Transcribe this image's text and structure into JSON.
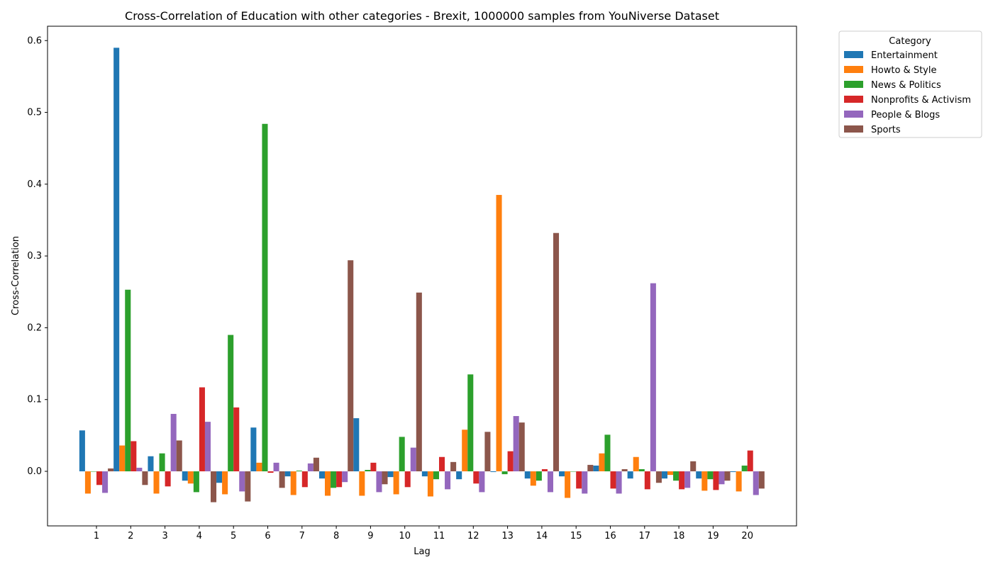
{
  "chart_data": {
    "type": "bar",
    "title": "Cross-Correlation of Education with other categories - Brexit, 1000000 samples from YouNiverse Dataset",
    "xlabel": "Lag",
    "ylabel": "Cross-Correlation",
    "ylim": [
      -0.076,
      0.62
    ],
    "yticks": [
      0.0,
      0.1,
      0.2,
      0.3,
      0.4,
      0.5,
      0.6
    ],
    "ytick_labels": [
      "0.0",
      "0.1",
      "0.2",
      "0.3",
      "0.4",
      "0.5",
      "0.6"
    ],
    "categories": [
      "1",
      "2",
      "3",
      "4",
      "5",
      "6",
      "7",
      "8",
      "9",
      "10",
      "11",
      "12",
      "13",
      "14",
      "15",
      "16",
      "17",
      "18",
      "19",
      "20"
    ],
    "legend": {
      "title": "Category",
      "placement": "outside-top-right"
    },
    "grid": false,
    "series": [
      {
        "name": "Entertainment",
        "color": "#1f77b4",
        "values": [
          0.057,
          0.59,
          0.021,
          -0.013,
          -0.016,
          0.061,
          -0.007,
          -0.01,
          0.074,
          -0.008,
          -0.007,
          -0.011,
          -0.001,
          -0.01,
          -0.007,
          0.008,
          -0.01,
          -0.01,
          -0.01,
          -0.001
        ]
      },
      {
        "name": "Howto & Style",
        "color": "#ff7f0e",
        "values": [
          -0.031,
          0.036,
          -0.031,
          -0.017,
          -0.032,
          0.012,
          -0.033,
          -0.034,
          -0.034,
          -0.032,
          -0.035,
          0.058,
          0.385,
          -0.02,
          -0.037,
          0.025,
          0.02,
          -0.005,
          -0.027,
          -0.028
        ]
      },
      {
        "name": "News & Politics",
        "color": "#2ca02c",
        "values": [
          0.0,
          0.253,
          0.025,
          -0.029,
          0.19,
          0.484,
          0.001,
          -0.023,
          0.002,
          0.048,
          -0.011,
          0.135,
          -0.004,
          -0.013,
          0.0,
          0.051,
          0.003,
          -0.013,
          -0.011,
          0.008
        ]
      },
      {
        "name": "Nonprofits & Activism",
        "color": "#d62728",
        "values": [
          -0.019,
          0.042,
          -0.021,
          0.117,
          0.089,
          -0.002,
          -0.022,
          -0.022,
          0.012,
          -0.022,
          0.02,
          -0.017,
          0.028,
          0.003,
          -0.024,
          -0.024,
          -0.025,
          -0.025,
          -0.026,
          0.029
        ]
      },
      {
        "name": "People & Blogs",
        "color": "#9467bd",
        "values": [
          -0.03,
          0.005,
          0.08,
          0.069,
          -0.028,
          0.012,
          0.011,
          -0.015,
          -0.029,
          0.033,
          -0.025,
          -0.029,
          0.077,
          -0.029,
          -0.031,
          -0.031,
          0.262,
          -0.023,
          -0.018,
          -0.033
        ]
      },
      {
        "name": "Sports",
        "color": "#8c564b",
        "values": [
          0.004,
          -0.019,
          0.043,
          -0.043,
          -0.042,
          -0.023,
          0.019,
          0.294,
          -0.018,
          0.249,
          0.013,
          0.055,
          0.068,
          0.332,
          0.009,
          0.003,
          -0.016,
          0.014,
          -0.013,
          -0.024
        ]
      }
    ]
  }
}
